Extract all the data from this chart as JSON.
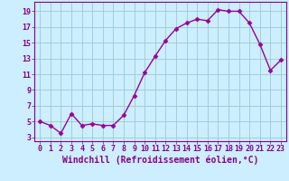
{
  "x": [
    0,
    1,
    2,
    3,
    4,
    5,
    6,
    7,
    8,
    9,
    10,
    11,
    12,
    13,
    14,
    15,
    16,
    17,
    18,
    19,
    20,
    21,
    22,
    23
  ],
  "y": [
    5.0,
    4.5,
    3.5,
    6.0,
    4.5,
    4.7,
    4.5,
    4.5,
    5.8,
    8.3,
    11.2,
    13.3,
    15.3,
    16.8,
    17.5,
    18.0,
    17.8,
    19.2,
    19.0,
    19.0,
    17.5,
    14.8,
    11.5,
    12.8
  ],
  "line_color": "#990099",
  "marker": "D",
  "marker_size": 2.5,
  "line_width": 1.0,
  "background_color": "#cceeff",
  "grid_color": "#99cccc",
  "xlabel": "Windchill (Refroidissement éolien,°C)",
  "xlabel_fontsize": 7,
  "xlabel_color": "#880088",
  "ytick_labels": [
    "3",
    "5",
    "7",
    "9",
    "11",
    "13",
    "15",
    "17",
    "19"
  ],
  "ytick_values": [
    3,
    5,
    7,
    9,
    11,
    13,
    15,
    17,
    19
  ],
  "xtick_labels": [
    "0",
    "1",
    "2",
    "3",
    "4",
    "5",
    "6",
    "7",
    "8",
    "9",
    "10",
    "11",
    "12",
    "13",
    "14",
    "15",
    "16",
    "17",
    "18",
    "19",
    "20",
    "21",
    "22",
    "23"
  ],
  "xlim": [
    -0.5,
    23.5
  ],
  "ylim": [
    2.5,
    20.2
  ],
  "tick_color": "#880088",
  "tick_fontsize": 6,
  "spine_color": "#880088"
}
